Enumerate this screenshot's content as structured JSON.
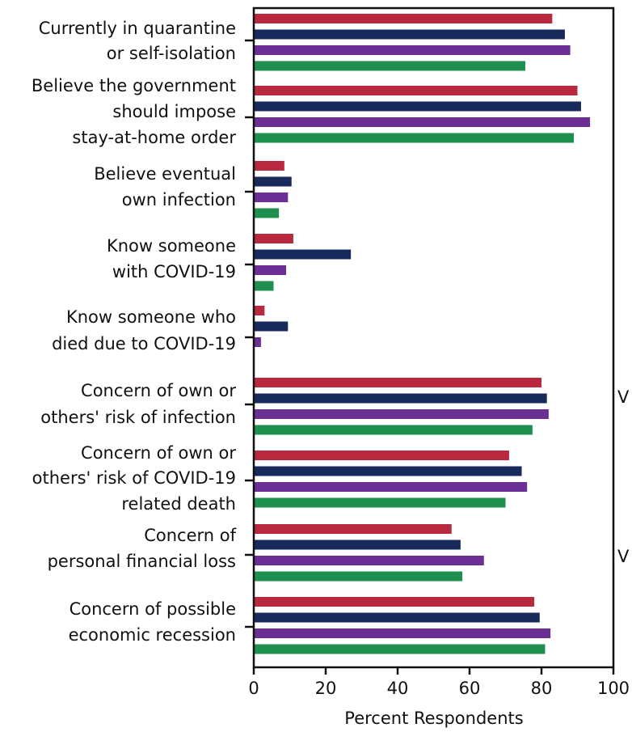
{
  "chart_data": {
    "type": "bar",
    "orientation": "horizontal",
    "xlabel": "Percent Respondents",
    "xlim": [
      0,
      100
    ],
    "x_ticks": [
      "0",
      "20",
      "40",
      "60",
      "80",
      "100"
    ],
    "grid": false,
    "categories": [
      [
        "Currently in quarantine",
        "or self-isolation"
      ],
      [
        "Believe the government",
        "should impose",
        "stay-at-home order"
      ],
      [
        "Believe eventual",
        "own infection"
      ],
      [
        "Know someone",
        "with COVID-19"
      ],
      [
        "Know someone who",
        "died due to COVID-19"
      ],
      [
        "Concern of own or",
        "others' risk of infection"
      ],
      [
        "Concern of own or",
        "others' risk of COVID-19",
        "related death"
      ],
      [
        "Concern of",
        "personal financial loss"
      ],
      [
        "Concern of possible",
        "economic recession"
      ]
    ],
    "series": [
      {
        "color": "#b8283f",
        "values": [
          83,
          90,
          8.5,
          11,
          3,
          80,
          71,
          55,
          78
        ]
      },
      {
        "color": "#172a5a",
        "values": [
          86.5,
          91,
          10.5,
          27,
          9.5,
          81.5,
          74.5,
          57.5,
          79.5
        ]
      },
      {
        "color": "#6b2e95",
        "values": [
          88,
          93.5,
          9.5,
          9,
          2,
          82,
          76,
          64,
          82.5
        ]
      },
      {
        "color": "#1e8f4e",
        "values": [
          75.5,
          89,
          7,
          5.5,
          0,
          77.5,
          70,
          58,
          81
        ]
      }
    ],
    "cut_text": [
      "V",
      "V"
    ]
  }
}
